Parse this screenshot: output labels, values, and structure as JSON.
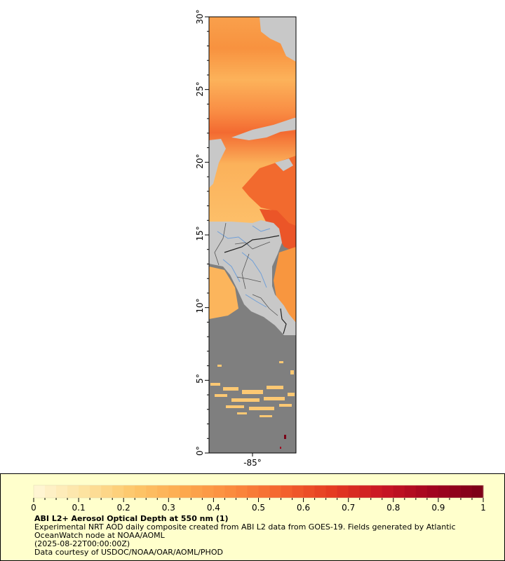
{
  "map": {
    "lat_ticks": [
      "0°",
      "5°",
      "10°",
      "15°",
      "20°",
      "25°",
      "30°"
    ],
    "lon_ticks": [
      "-85°"
    ],
    "colors": {
      "land": "#c8c8c8",
      "no_data": "#7f7f7f",
      "rivers": "#6f9fd8",
      "borders": "#555555",
      "coast": "#333333"
    }
  },
  "legend": {
    "tick_labels": [
      "0",
      "0.1",
      "0.2",
      "0.3",
      "0.4",
      "0.5",
      "0.6",
      "0.7",
      "0.8",
      "0.9",
      "1"
    ],
    "range": [
      0,
      1
    ],
    "colormap": [
      "#fff7d8",
      "#fde3a1",
      "#fdc76a",
      "#fda94e",
      "#fb8a3d",
      "#f4632e",
      "#e43a21",
      "#c81524",
      "#a1041f",
      "#7a0017"
    ],
    "title": "ABI L2+ Aerosol Optical Depth at 550 nm (1)",
    "line1": "Experimental NRT AOD daily composite created from ABI L2 data from GOES-19. Fields generated by Atlantic",
    "line2": "OceanWatch node at NOAA/AOML",
    "line3": "(2025-08-22T00:00:00Z)",
    "line4": "Data courtesy of USDOC/NOAA/OAR/AOML/PHOD"
  }
}
